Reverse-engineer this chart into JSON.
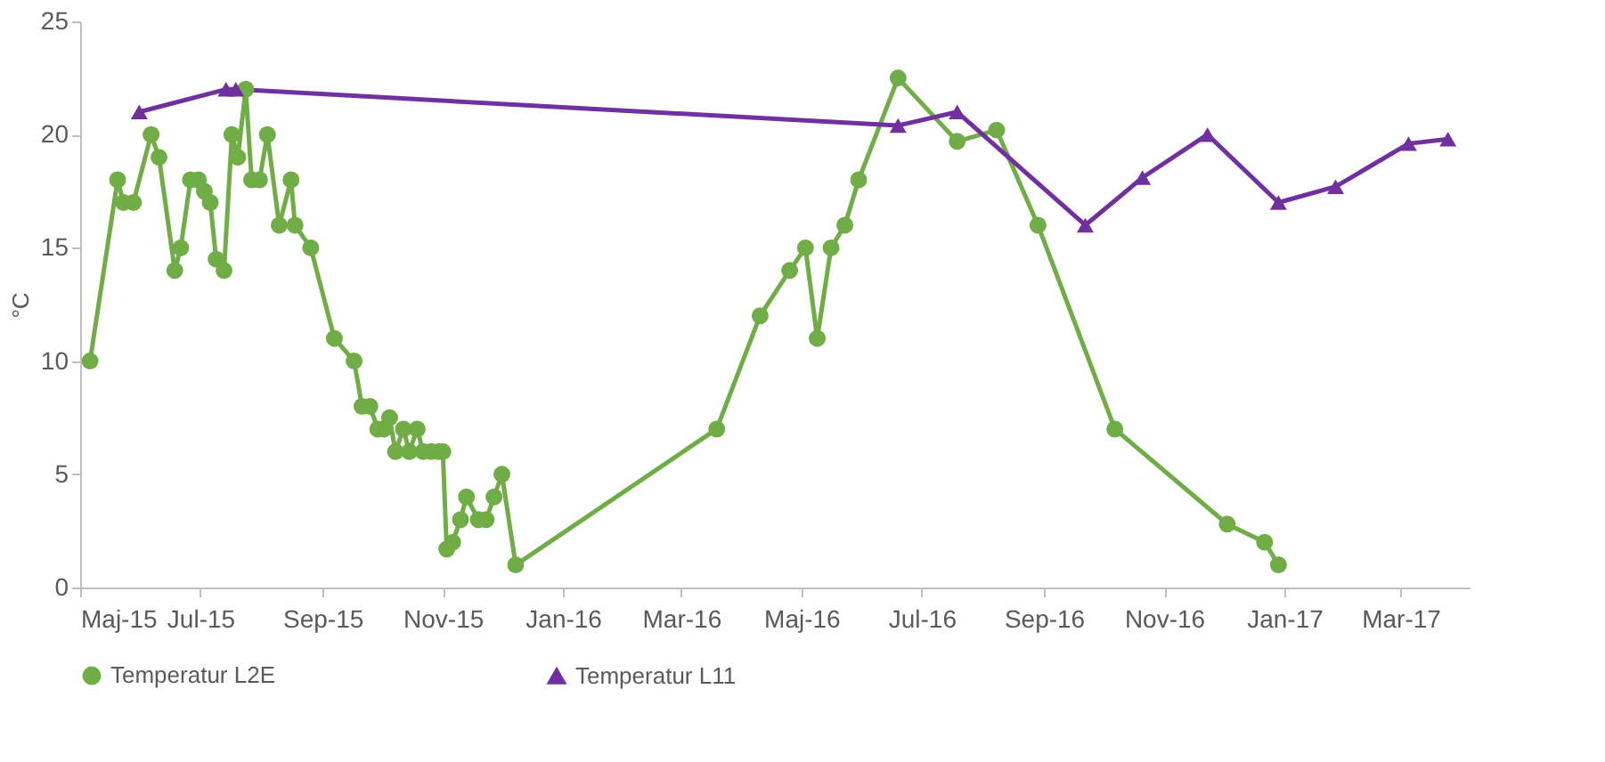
{
  "chart_data": {
    "type": "line",
    "ylabel": "°C",
    "xlim": [
      "2015-05-01",
      "2017-04-05"
    ],
    "xticks": [
      {
        "value": "2015-05-01",
        "label": "Maj-15"
      },
      {
        "value": "2015-07-01",
        "label": "Jul-15"
      },
      {
        "value": "2015-09-01",
        "label": "Sep-15"
      },
      {
        "value": "2015-11-01",
        "label": "Nov-15"
      },
      {
        "value": "2016-01-01",
        "label": "Jan-16"
      },
      {
        "value": "2016-03-01",
        "label": "Mar-16"
      },
      {
        "value": "2016-05-01",
        "label": "Maj-16"
      },
      {
        "value": "2016-07-01",
        "label": "Jul-16"
      },
      {
        "value": "2016-09-01",
        "label": "Sep-16"
      },
      {
        "value": "2016-11-01",
        "label": "Nov-16"
      },
      {
        "value": "2017-01-01",
        "label": "Jan-17"
      },
      {
        "value": "2017-03-01",
        "label": "Mar-17"
      }
    ],
    "ylim": [
      0,
      25
    ],
    "yticks": [
      0,
      5,
      10,
      15,
      20,
      25
    ],
    "grid": false,
    "legend": "bottom",
    "series": [
      {
        "name": "Temperatur L2E",
        "color": "#70ad47",
        "marker": "circle",
        "x": [
          "2015-05-06",
          "2015-05-20",
          "2015-05-23",
          "2015-05-28",
          "2015-06-06",
          "2015-06-10",
          "2015-06-18",
          "2015-06-21",
          "2015-06-26",
          "2015-06-30",
          "2015-07-03",
          "2015-07-06",
          "2015-07-09",
          "2015-07-13",
          "2015-07-17",
          "2015-07-20",
          "2015-07-24",
          "2015-07-27",
          "2015-07-31",
          "2015-08-04",
          "2015-08-10",
          "2015-08-16",
          "2015-08-18",
          "2015-08-26",
          "2015-09-07",
          "2015-09-17",
          "2015-09-21",
          "2015-09-25",
          "2015-09-29",
          "2015-10-02",
          "2015-10-05",
          "2015-10-08",
          "2015-10-12",
          "2015-10-15",
          "2015-10-19",
          "2015-10-22",
          "2015-10-26",
          "2015-10-30",
          "2015-11-01",
          "2015-11-03",
          "2015-11-06",
          "2015-11-10",
          "2015-11-13",
          "2015-11-19",
          "2015-11-23",
          "2015-11-27",
          "2015-12-01",
          "2015-12-08",
          "2016-03-19",
          "2016-04-10",
          "2016-04-25",
          "2016-05-03",
          "2016-05-09",
          "2016-05-16",
          "2016-05-23",
          "2016-05-30",
          "2016-06-19",
          "2016-07-19",
          "2016-08-08",
          "2016-08-29",
          "2016-10-07",
          "2016-12-03",
          "2016-12-22",
          "2016-12-29"
        ],
        "values": [
          10,
          18,
          17,
          17,
          20,
          19,
          14,
          15,
          18,
          18,
          17.5,
          17,
          14.5,
          14,
          20,
          19,
          22,
          18,
          18,
          20,
          16,
          18,
          16,
          15,
          11,
          10,
          8,
          8,
          7,
          7,
          7.5,
          6,
          7,
          6,
          7,
          6,
          6,
          6,
          6,
          1.7,
          2,
          3,
          4,
          3,
          3,
          4,
          5,
          1,
          7,
          12,
          14,
          15,
          11,
          15,
          16,
          18,
          22.5,
          19.7,
          20.2,
          16,
          7,
          2.8,
          2,
          1
        ]
      },
      {
        "name": "Temperatur L11",
        "color": "#7030a0",
        "marker": "triangle",
        "x": [
          "2015-05-31",
          "2015-07-14",
          "2015-07-19",
          "2016-06-19",
          "2016-07-19",
          "2016-09-22",
          "2016-10-21",
          "2016-11-23",
          "2016-12-29",
          "2017-01-27",
          "2017-03-05",
          "2017-03-25"
        ],
        "values": [
          21,
          22,
          22,
          20.4,
          21,
          16,
          18.1,
          20,
          17,
          17.7,
          19.6,
          19.8
        ]
      }
    ]
  }
}
